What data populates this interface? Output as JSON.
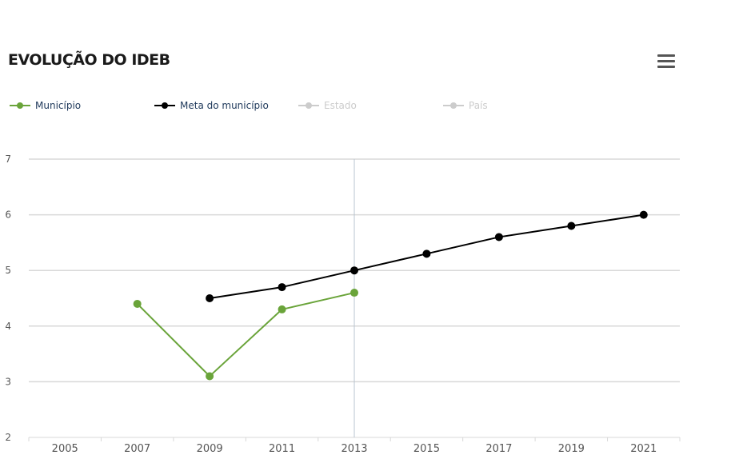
{
  "title": "EVOLUÇÃO DO IDEB",
  "menu_icon": "hamburger-menu-icon",
  "colors": {
    "municipio": "#6aa43a",
    "meta": "#000000",
    "disabled": "#cccccc",
    "grid": "#d8d8d8",
    "crosshair": "#b8c4d0",
    "tick_text": "#555555",
    "legend_text": "#203a5c"
  },
  "legend": [
    {
      "label": "Município",
      "color": "#6aa43a",
      "active": true
    },
    {
      "label": "Meta do município",
      "color": "#000000",
      "active": true
    },
    {
      "label": "Estado",
      "color": "#cccccc",
      "active": false
    },
    {
      "label": "País",
      "color": "#cccccc",
      "active": false
    }
  ],
  "chart_data": {
    "type": "line",
    "title": "EVOLUÇÃO DO IDEB",
    "categories": [
      "2005",
      "2007",
      "2009",
      "2011",
      "2013",
      "2015",
      "2017",
      "2019",
      "2021"
    ],
    "ylim": [
      2,
      7
    ],
    "yticks": [
      "2",
      "3",
      "4",
      "5",
      "6",
      "7"
    ],
    "grid": true,
    "legend_position": "top",
    "crosshair_category": "2013",
    "series": [
      {
        "name": "Município",
        "values": [
          null,
          4.4,
          3.1,
          4.3,
          4.6,
          null,
          null,
          null,
          null
        ],
        "color": "#6aa43a"
      },
      {
        "name": "Meta do município",
        "values": [
          null,
          null,
          4.5,
          4.7,
          5.0,
          5.3,
          5.6,
          5.8,
          6.0
        ],
        "color": "#000000"
      }
    ]
  }
}
